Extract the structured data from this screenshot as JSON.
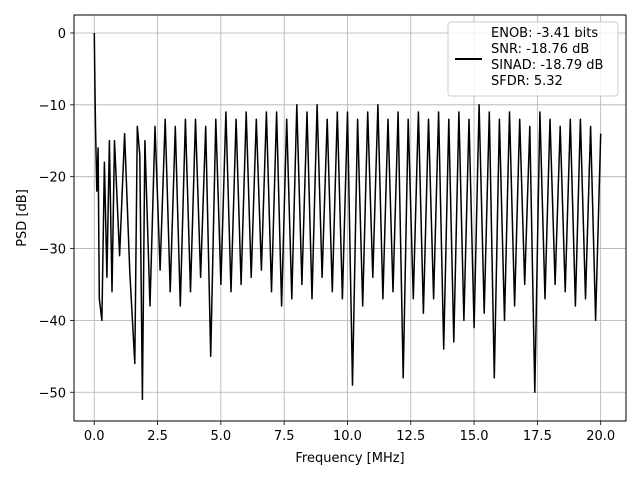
{
  "chart_data": {
    "type": "line",
    "title": "",
    "xlabel": "Frequency [MHz]",
    "ylabel": "PSD [dB]",
    "xlim": [
      -0.8,
      21.0
    ],
    "ylim": [
      -54.0,
      2.5
    ],
    "xticks": [
      0.0,
      2.5,
      5.0,
      7.5,
      10.0,
      12.5,
      15.0,
      17.5,
      20.0
    ],
    "xtick_labels": [
      "0.0",
      "2.5",
      "5.0",
      "7.5",
      "10.0",
      "12.5",
      "15.0",
      "17.5",
      "20.0"
    ],
    "yticks": [
      0,
      -10,
      -20,
      -30,
      -40,
      -50
    ],
    "ytick_labels": [
      "0",
      "−10",
      "−20",
      "−30",
      "−40",
      "−50"
    ],
    "grid": true,
    "legend_position": "top-right",
    "line_color": "#000000",
    "legend_lines": [
      "ENOB: -3.41 bits",
      "SNR: -18.76 dB",
      "SINAD: -18.79 dB",
      "SFDR: 5.32"
    ],
    "series": [
      {
        "x": [
          0.0,
          0.02,
          0.05,
          0.1,
          0.15,
          0.2,
          0.3,
          0.4,
          0.5,
          0.6,
          0.7,
          0.8,
          1.0,
          1.2,
          1.4,
          1.6,
          1.7,
          1.8,
          1.9,
          2.0,
          2.2,
          2.4,
          2.6,
          2.8,
          3.0,
          3.2,
          3.4,
          3.6,
          3.8,
          4.0,
          4.2,
          4.4,
          4.6,
          4.8,
          5.0,
          5.2,
          5.4,
          5.6,
          5.8,
          6.0,
          6.2,
          6.4,
          6.6,
          6.8,
          7.0,
          7.2,
          7.4,
          7.6,
          7.8,
          8.0,
          8.2,
          8.4,
          8.6,
          8.8,
          9.0,
          9.2,
          9.4,
          9.6,
          9.8,
          10.0,
          10.2,
          10.4,
          10.6,
          10.8,
          11.0,
          11.2,
          11.4,
          11.6,
          11.8,
          12.0,
          12.2,
          12.4,
          12.6,
          12.8,
          13.0,
          13.2,
          13.4,
          13.6,
          13.8,
          14.0,
          14.2,
          14.4,
          14.6,
          14.8,
          15.0,
          15.2,
          15.4,
          15.6,
          15.8,
          16.0,
          16.2,
          16.4,
          16.6,
          16.8,
          17.0,
          17.2,
          17.4,
          17.6,
          17.8,
          18.0,
          18.2,
          18.4,
          18.6,
          18.8,
          19.0,
          19.2,
          19.4,
          19.6,
          19.8,
          20.0
        ],
        "y": [
          0.0,
          -6,
          -13,
          -22,
          -16,
          -37,
          -40,
          -18,
          -34,
          -15,
          -36,
          -15,
          -31,
          -14,
          -33,
          -46,
          -13,
          -17,
          -51,
          -15,
          -38,
          -13,
          -33,
          -12,
          -36,
          -13,
          -38,
          -12,
          -36,
          -12,
          -34,
          -13,
          -45,
          -12,
          -35,
          -11,
          -36,
          -12,
          -35,
          -11,
          -34,
          -12,
          -33,
          -11,
          -36,
          -11,
          -38,
          -12,
          -37,
          -10,
          -35,
          -11,
          -37,
          -10,
          -34,
          -12,
          -36,
          -11,
          -37,
          -11,
          -49,
          -12,
          -38,
          -11,
          -34,
          -10,
          -37,
          -12,
          -36,
          -11,
          -48,
          -12,
          -37,
          -11,
          -39,
          -12,
          -37,
          -11,
          -44,
          -12,
          -43,
          -11,
          -40,
          -12,
          -41,
          -10,
          -39,
          -11,
          -48,
          -12,
          -40,
          -11,
          -38,
          -12,
          -35,
          -13,
          -50,
          -11,
          -37,
          -12,
          -35,
          -13,
          -36,
          -12,
          -38,
          -12,
          -37,
          -13,
          -40,
          -14
        ]
      }
    ]
  }
}
